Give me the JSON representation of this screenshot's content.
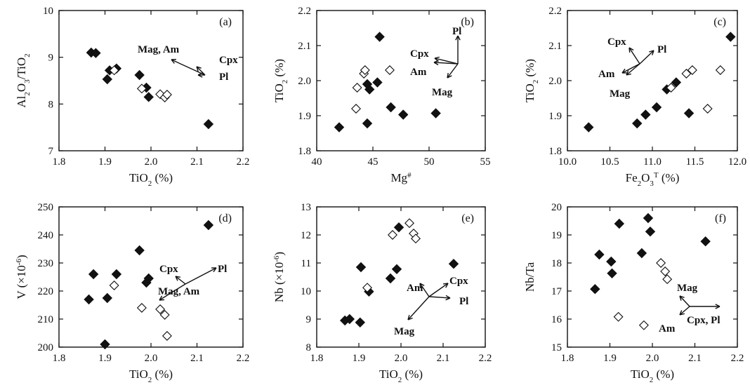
{
  "chart_data": [
    {
      "type": "scatter",
      "panel_label": "(a)",
      "xlabel": "TiO",
      "xlabel_sub": "2",
      "xlabel_tail": " (%)",
      "ylabel": "Al",
      "ylabel_sub1": "2",
      "ylabel_mid": "O",
      "ylabel_sub2": "3",
      "ylabel_tail": "/TiO",
      "ylabel_sub3": "2",
      "xlim": [
        1.8,
        2.2
      ],
      "ylim": [
        7,
        10
      ],
      "xticks": [
        "1.8",
        "1.9",
        "2.0",
        "2.1",
        "2.2"
      ],
      "yticks": [
        "7",
        "8",
        "9",
        "10"
      ],
      "series": [
        {
          "marker": "filled-diamond",
          "points": [
            [
              1.87,
              9.1
            ],
            [
              1.88,
              9.09
            ],
            [
              1.905,
              8.53
            ],
            [
              1.91,
              8.72
            ],
            [
              1.925,
              8.76
            ],
            [
              1.975,
              8.62
            ],
            [
              1.99,
              8.35
            ],
            [
              1.995,
              8.15
            ],
            [
              2.125,
              7.57
            ]
          ]
        },
        {
          "marker": "open-diamond",
          "points": [
            [
              1.92,
              8.72
            ],
            [
              1.98,
              8.33
            ],
            [
              2.02,
              8.21
            ],
            [
              2.03,
              8.14
            ],
            [
              2.035,
              8.2
            ]
          ]
        }
      ],
      "annotations": [
        "Mag, Am",
        "Cpx",
        "Pl"
      ]
    },
    {
      "type": "scatter",
      "panel_label": "(b)",
      "xlabel": "Mg",
      "xlabel_sup": "#",
      "xlabel_tail": "",
      "ylabel": "TiO",
      "ylabel_sub": "2",
      "ylabel_tail": " (%)",
      "xlim": [
        40,
        55
      ],
      "ylim": [
        1.8,
        2.2
      ],
      "xticks": [
        "40",
        "45",
        "50",
        "55"
      ],
      "yticks": [
        "1.8",
        "1.9",
        "2.0",
        "2.1",
        "2.2"
      ],
      "series": [
        {
          "marker": "filled-diamond",
          "points": [
            [
              42.0,
              1.867
            ],
            [
              44.5,
              1.878
            ],
            [
              44.5,
              1.99
            ],
            [
              44.7,
              1.975
            ],
            [
              45.4,
              1.995
            ],
            [
              45.6,
              2.125
            ],
            [
              46.6,
              1.924
            ],
            [
              47.7,
              1.903
            ],
            [
              50.6,
              1.907
            ]
          ]
        },
        {
          "marker": "open-diamond",
          "points": [
            [
              43.5,
              1.92
            ],
            [
              43.6,
              1.98
            ],
            [
              44.2,
              2.02
            ],
            [
              44.3,
              2.03
            ],
            [
              46.5,
              2.03
            ]
          ]
        }
      ],
      "annotations": [
        "Pl",
        "Cpx",
        "Am",
        "Mag"
      ]
    },
    {
      "type": "scatter",
      "panel_label": "(c)",
      "xlabel": "Fe",
      "xlabel_sub1": "2",
      "xlabel_mid": "O",
      "xlabel_sub2": "3",
      "xlabel_sup": "T",
      "xlabel_tail": " (%)",
      "ylabel": "TiO",
      "ylabel_sub": "2",
      "ylabel_tail": " (%)",
      "xlim": [
        10.0,
        12.0
      ],
      "ylim": [
        1.8,
        2.2
      ],
      "xticks": [
        "10.0",
        "10.5",
        "11.0",
        "11.5",
        "12.0"
      ],
      "yticks": [
        "1.8",
        "1.9",
        "2.0",
        "2.1",
        "2.2"
      ],
      "series": [
        {
          "marker": "filled-diamond",
          "points": [
            [
              10.25,
              1.867
            ],
            [
              10.82,
              1.878
            ],
            [
              10.92,
              1.903
            ],
            [
              11.05,
              1.924
            ],
            [
              11.17,
              1.975
            ],
            [
              11.28,
              1.995
            ],
            [
              11.43,
              1.907
            ],
            [
              11.92,
              2.125
            ]
          ]
        },
        {
          "marker": "open-diamond",
          "points": [
            [
              11.22,
              1.98
            ],
            [
              11.4,
              2.02
            ],
            [
              11.47,
              2.03
            ],
            [
              11.65,
              1.92
            ],
            [
              11.8,
              2.03
            ]
          ]
        }
      ],
      "annotations": [
        "Cpx",
        "Pl",
        "Am",
        "Mag"
      ]
    },
    {
      "type": "scatter",
      "panel_label": "(d)",
      "xlabel": "TiO",
      "xlabel_sub": "2",
      "xlabel_tail": " (%)",
      "ylabel": "V (×10",
      "ylabel_sup": "-6",
      "ylabel_tail": ")",
      "xlim": [
        1.8,
        2.2
      ],
      "ylim": [
        200,
        250
      ],
      "xticks": [
        "1.8",
        "1.9",
        "2.0",
        "2.1",
        "2.2"
      ],
      "yticks": [
        "200",
        "210",
        "220",
        "230",
        "240",
        "250"
      ],
      "series": [
        {
          "marker": "filled-diamond",
          "points": [
            [
              1.865,
              217
            ],
            [
              1.875,
              226
            ],
            [
              1.9,
              201
            ],
            [
              1.905,
              217.5
            ],
            [
              1.925,
              226
            ],
            [
              1.975,
              234.5
            ],
            [
              1.99,
              223
            ],
            [
              1.995,
              224.5
            ],
            [
              2.125,
              243.5
            ]
          ]
        },
        {
          "marker": "open-diamond",
          "points": [
            [
              1.92,
              222
            ],
            [
              1.98,
              214
            ],
            [
              2.02,
              213.5
            ],
            [
              2.03,
              211.5
            ],
            [
              2.035,
              204
            ]
          ]
        }
      ],
      "annotations": [
        "Cpx",
        "Pl",
        "Mag, Am"
      ]
    },
    {
      "type": "scatter",
      "panel_label": "(e)",
      "xlabel": "TiO",
      "xlabel_sub": "2",
      "xlabel_tail": " (%)",
      "ylabel": "Nb (×10",
      "ylabel_sup": "-6",
      "ylabel_tail": ")",
      "xlim": [
        1.8,
        2.2
      ],
      "ylim": [
        8,
        13
      ],
      "xticks": [
        "1.8",
        "1.9",
        "2.0",
        "2.1",
        "2.2"
      ],
      "yticks": [
        "8",
        "9",
        "10",
        "11",
        "12",
        "13"
      ],
      "series": [
        {
          "marker": "filled-diamond",
          "points": [
            [
              1.867,
              8.95
            ],
            [
              1.878,
              9.0
            ],
            [
              1.903,
              8.88
            ],
            [
              1.905,
              10.85
            ],
            [
              1.924,
              9.98
            ],
            [
              1.975,
              10.45
            ],
            [
              1.99,
              10.78
            ],
            [
              1.995,
              12.27
            ],
            [
              2.125,
              10.97
            ]
          ]
        },
        {
          "marker": "open-diamond",
          "points": [
            [
              1.92,
              10.12
            ],
            [
              1.98,
              12.0
            ],
            [
              2.02,
              12.42
            ],
            [
              2.03,
              12.05
            ],
            [
              2.035,
              11.87
            ]
          ]
        }
      ],
      "annotations": [
        "Cpx",
        "Am",
        "Pl",
        "Mag"
      ]
    },
    {
      "type": "scatter",
      "panel_label": "(f)",
      "xlabel": "TiO",
      "xlabel_sub": "2",
      "xlabel_tail": " (%)",
      "ylabel": "Nb/Ta",
      "ylabel_tail": "",
      "xlim": [
        1.8,
        2.2
      ],
      "ylim": [
        15,
        20
      ],
      "xticks": [
        "1.8",
        "1.9",
        "2.0",
        "2.1",
        "2.2"
      ],
      "yticks": [
        "15",
        "16",
        "17",
        "18",
        "19",
        "20"
      ],
      "series": [
        {
          "marker": "filled-diamond",
          "points": [
            [
              1.865,
              17.07
            ],
            [
              1.875,
              18.3
            ],
            [
              1.903,
              18.05
            ],
            [
              1.905,
              17.63
            ],
            [
              1.922,
              19.4
            ],
            [
              1.975,
              18.35
            ],
            [
              1.99,
              19.6
            ],
            [
              1.995,
              19.12
            ],
            [
              2.125,
              18.77
            ]
          ]
        },
        {
          "marker": "open-diamond",
          "points": [
            [
              1.92,
              16.08
            ],
            [
              1.98,
              15.78
            ],
            [
              2.02,
              18.0
            ],
            [
              2.03,
              17.7
            ],
            [
              2.035,
              17.42
            ]
          ]
        }
      ],
      "annotations": [
        "Mag",
        "Cpx, Pl",
        "Am"
      ]
    }
  ]
}
